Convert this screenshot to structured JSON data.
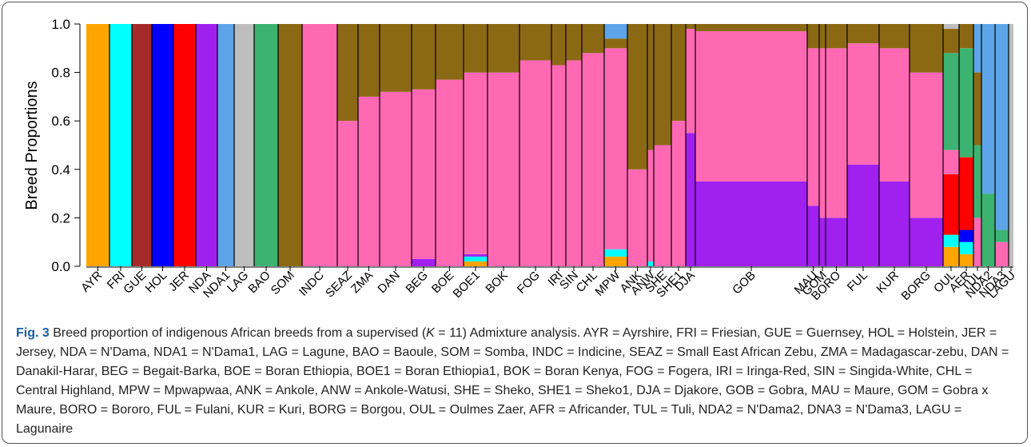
{
  "chart_data": {
    "type": "stacked_bar",
    "y_label": "Breed Proportions",
    "categories": [
      "AYR",
      "FRI",
      "GUE",
      "HOL",
      "JER",
      "NDA",
      "NDA1",
      "LAG",
      "BAO",
      "SOM",
      "INDC",
      "SEAZ",
      "ZMA",
      "DAN",
      "BEG",
      "BOE",
      "BOE1",
      "BOK",
      "FOG",
      "IRI",
      "SIN",
      "CHL",
      "MPW",
      "ANK",
      "ANW",
      "SHE",
      "SHE1",
      "DJA",
      "GOB",
      "MAU",
      "GOM",
      "BORO",
      "FUL",
      "KUR",
      "BORG",
      "OUL",
      "AFR",
      "TUL",
      "NDA2",
      "NDA3",
      "LAGU"
    ],
    "ylim": [
      0,
      1
    ],
    "yticks": [
      {
        "value": 0,
        "label": "0.0"
      },
      {
        "value": 0.2,
        "label": "0.2"
      },
      {
        "value": 0.4,
        "label": "0.4"
      },
      {
        "value": 0.6,
        "label": "0.6"
      },
      {
        "value": 0.8,
        "label": "0.8"
      },
      {
        "value": 1,
        "label": "1.0"
      }
    ],
    "series": [
      {
        "color": "#FFA500",
        "values": [
          1,
          0,
          0,
          0,
          0,
          0,
          0,
          0,
          0,
          0,
          0,
          0,
          0,
          0,
          0,
          0,
          0.02,
          0,
          0,
          0,
          0,
          0,
          0.04,
          0,
          0,
          0,
          0,
          0,
          0,
          0,
          0,
          0,
          0,
          0,
          0,
          0.08,
          0.05,
          0,
          0,
          0,
          0
        ]
      },
      {
        "color": "#00FFFF",
        "values": [
          0,
          1,
          0,
          0,
          0,
          0,
          0,
          0,
          0,
          0,
          0,
          0,
          0,
          0,
          0,
          0,
          0.02,
          0,
          0,
          0,
          0,
          0,
          0.03,
          0,
          0.02,
          0,
          0,
          0,
          0,
          0,
          0,
          0,
          0,
          0,
          0,
          0.05,
          0.05,
          0,
          0,
          0,
          0
        ]
      },
      {
        "color": "#A52A2A",
        "values": [
          0,
          0,
          1,
          0,
          0,
          0,
          0,
          0,
          0,
          0,
          0,
          0,
          0,
          0,
          0,
          0,
          0,
          0,
          0,
          0,
          0,
          0,
          0,
          0,
          0,
          0,
          0,
          0,
          0,
          0,
          0,
          0,
          0,
          0,
          0,
          0,
          0,
          0,
          0,
          0,
          0
        ]
      },
      {
        "color": "#0000FF",
        "values": [
          0,
          0,
          0,
          1,
          0,
          0,
          0,
          0,
          0,
          0,
          0,
          0,
          0,
          0,
          0,
          0,
          0,
          0,
          0,
          0,
          0,
          0,
          0,
          0,
          0,
          0,
          0,
          0,
          0,
          0,
          0,
          0,
          0,
          0,
          0,
          0,
          0.05,
          0,
          0,
          0,
          0
        ]
      },
      {
        "color": "#FF0000",
        "values": [
          0,
          0,
          0,
          0,
          1,
          0,
          0,
          0,
          0,
          0,
          0,
          0,
          0,
          0,
          0,
          0,
          0,
          0,
          0,
          0,
          0,
          0,
          0,
          0,
          0,
          0,
          0,
          0,
          0,
          0,
          0,
          0,
          0,
          0,
          0,
          0.25,
          0.3,
          0,
          0,
          0,
          0
        ]
      },
      {
        "color": "#A020F0",
        "values": [
          0,
          0,
          0,
          0,
          0,
          1,
          0,
          0,
          0,
          0,
          0,
          0,
          0,
          0,
          0.03,
          0,
          0.01,
          0,
          0,
          0,
          0,
          0,
          0,
          0,
          0,
          0,
          0,
          0.55,
          0.35,
          0.25,
          0.2,
          0.2,
          0.42,
          0.35,
          0.2,
          0,
          0,
          0,
          0,
          0,
          0
        ]
      },
      {
        "color": "#FF69B4",
        "values": [
          0,
          0,
          0,
          0,
          0,
          0,
          0,
          0,
          0,
          0,
          1,
          0.6,
          0.7,
          0.72,
          0.7,
          0.77,
          0.75,
          0.8,
          0.85,
          0.83,
          0.85,
          0.88,
          0.83,
          0.4,
          0.46,
          0.5,
          0.6,
          0.43,
          0.62,
          0.65,
          0.7,
          0.7,
          0.5,
          0.55,
          0.6,
          0.1,
          0,
          0.2,
          0,
          0.1,
          0
        ]
      },
      {
        "color": "#3CB371",
        "values": [
          0,
          0,
          0,
          0,
          0,
          0,
          0,
          0,
          1,
          0,
          0,
          0,
          0,
          0,
          0,
          0,
          0,
          0,
          0,
          0,
          0,
          0,
          0,
          0,
          0,
          0,
          0,
          0,
          0,
          0,
          0,
          0,
          0,
          0,
          0,
          0.4,
          0.45,
          0.3,
          0.3,
          0.05,
          0
        ]
      },
      {
        "color": "#8B6914",
        "values": [
          0,
          0,
          0,
          0,
          0,
          0,
          0,
          0,
          0,
          1,
          0,
          0.4,
          0.3,
          0.28,
          0.27,
          0.23,
          0.2,
          0.2,
          0.15,
          0.17,
          0.15,
          0.12,
          0.04,
          0.6,
          0.52,
          0.5,
          0.4,
          0.02,
          0.03,
          0.1,
          0.1,
          0.1,
          0.08,
          0.1,
          0.2,
          0.1,
          0.1,
          0.3,
          0,
          0,
          0
        ]
      },
      {
        "color": "#5DA5E8",
        "values": [
          0,
          0,
          0,
          0,
          0,
          0,
          1,
          0,
          0,
          0,
          0,
          0,
          0,
          0,
          0,
          0,
          0,
          0,
          0,
          0,
          0,
          0,
          0.06,
          0,
          0,
          0,
          0,
          0,
          0,
          0,
          0,
          0,
          0,
          0,
          0,
          0,
          0,
          0.2,
          0.7,
          0.85,
          0
        ]
      },
      {
        "color": "#BEBEBE",
        "values": [
          0,
          0,
          0,
          0,
          0,
          0,
          0,
          1,
          0,
          0,
          0,
          0,
          0,
          0,
          0,
          0,
          0,
          0,
          0,
          0,
          0,
          0,
          0,
          0,
          0,
          0,
          0,
          0,
          0,
          0,
          0,
          0,
          0,
          0,
          0,
          0.02,
          0,
          0,
          0,
          0,
          1
        ]
      }
    ]
  },
  "caption": {
    "label": "Fig. 3",
    "text_before": " Breed proportion of indigenous African breeds from a supervised (",
    "italic": "K",
    "text_after": " = 11) Admixture analysis. AYR = Ayrshire, FRI = Friesian, GUE = Guernsey, HOL = Holstein, JER = Jersey, NDA = N'Dama, NDA1 = N'Dama1, LAG = Lagune, BAO = Baoule, SOM = Somba, INDC = Indicine, SEAZ = Small East African Zebu, ZMA = Madagascar-zebu, DAN = Danakil-Harar, BEG = Begait-Barka, BOE = Boran Ethiopia, BOE1 = Boran Ethiopia1, BOK = Boran Kenya, FOG = Fogera, IRI = Iringa-Red, SIN = Singida-White, CHL = Central Highland, MPW = Mpwapwaa, ANK = Ankole, ANW = Ankole-Watusi, SHE = Sheko, SHE1 = Sheko1, DJA = Djakore, GOB = Gobra, MAU = Maure, GOM = Gobra x Maure, BORO = Bororo, FUL = Fulani, KUR = Kuri, BORG = Borgou, OUL = Oulmes Zaer, AFR = Africander, TUL = Tuli, NDA2 = N'Dama2, DNA3 = N'Dama3, LAGU = Lagunaire"
  }
}
